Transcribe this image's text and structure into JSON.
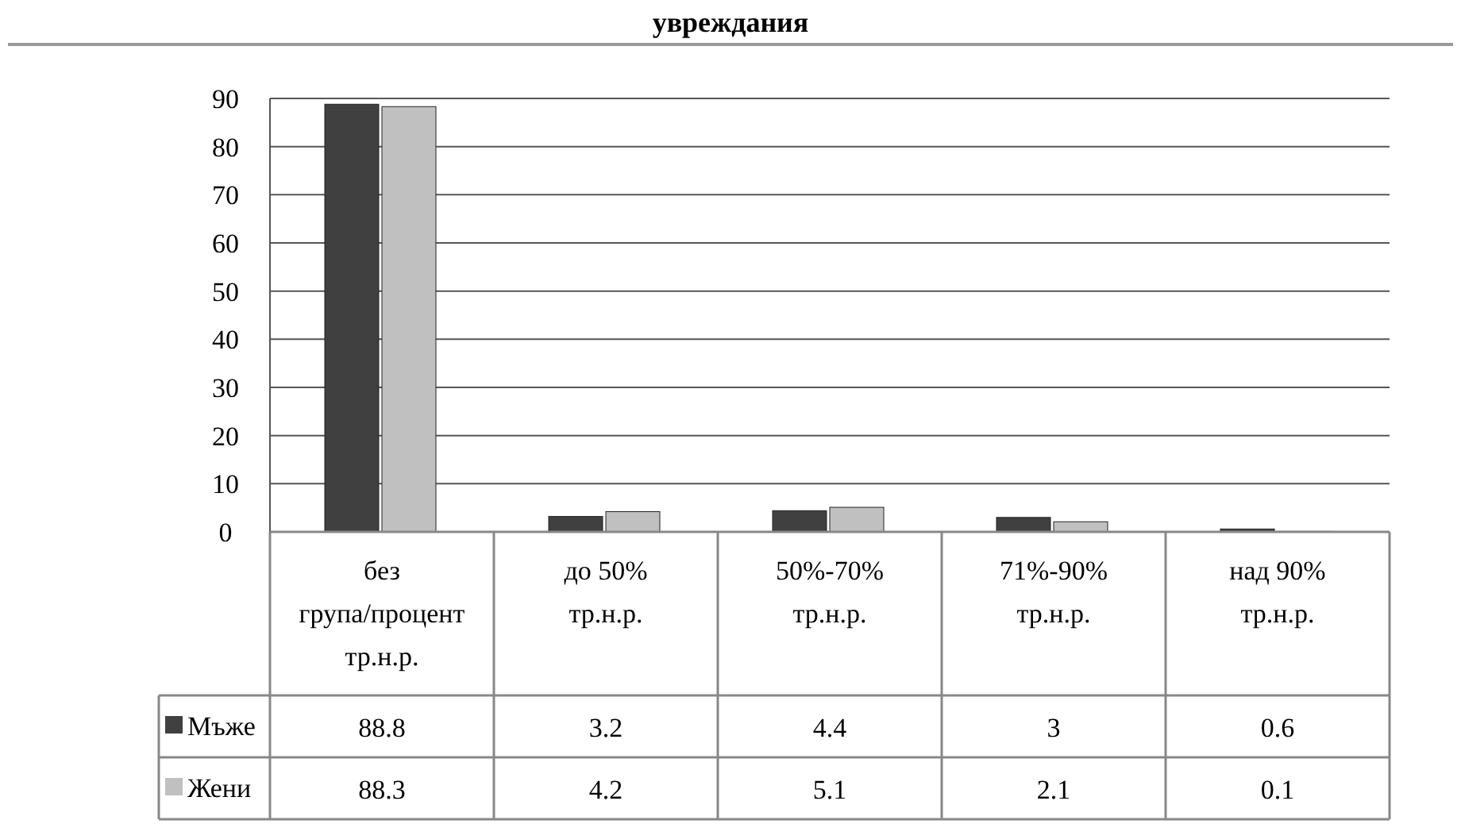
{
  "chart_data": {
    "type": "bar",
    "title": "увреждания",
    "categories": [
      "без група/процент тр.н.р.",
      "до 50% тр.н.р.",
      "50%-70% тр.н.р.",
      "71%-90% тр.н.р.",
      "над 90% тр.н.р."
    ],
    "series": [
      {
        "name": "Мъже",
        "color": "#404040",
        "values": [
          88.8,
          3.2,
          4.4,
          3,
          0.6
        ]
      },
      {
        "name": "Жени",
        "color": "#c0c0c0",
        "values": [
          88.3,
          4.2,
          5.1,
          2.1,
          0.1
        ]
      }
    ],
    "ylim": [
      0,
      90
    ],
    "yticks": [
      0,
      10,
      20,
      30,
      40,
      50,
      60,
      70,
      80,
      90
    ],
    "grid": "y",
    "legend": "bottom left",
    "data_labels": true
  }
}
